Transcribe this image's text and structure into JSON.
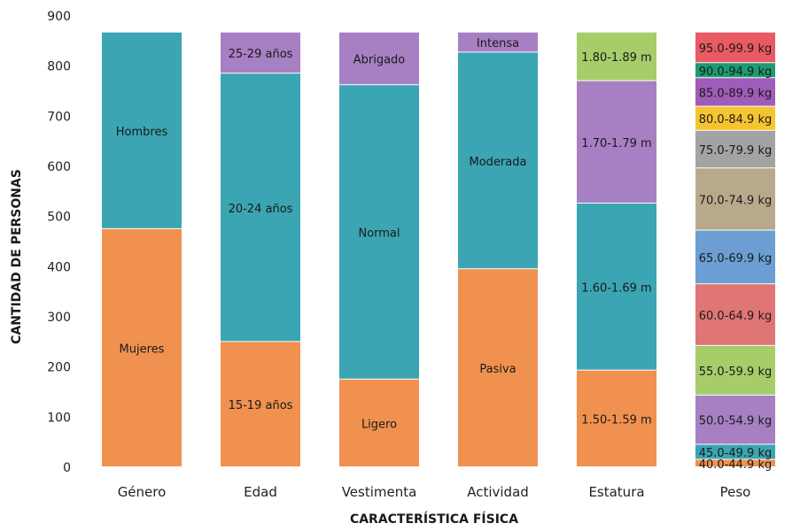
{
  "chart_data": {
    "type": "bar",
    "stacked": true,
    "title": "",
    "xlabel": "CARACTERÍSTICA FÍSICA",
    "ylabel": "CANTIDAD DE PERSONAS",
    "ylim": [
      0,
      900
    ],
    "yticks": [
      0,
      100,
      200,
      300,
      400,
      500,
      600,
      700,
      800,
      900
    ],
    "grid": false,
    "legend": "none",
    "categories": [
      "Género",
      "Edad",
      "Vestimenta",
      "Actividad",
      "Estatura",
      "Peso"
    ],
    "stacks": [
      {
        "category": "Género",
        "segments": [
          {
            "label": "Mujeres",
            "value": 475,
            "color": "#f0914f"
          },
          {
            "label": "Hombres",
            "value": 392,
            "color": "#3ba5b3"
          }
        ]
      },
      {
        "category": "Edad",
        "segments": [
          {
            "label": "15-19 años",
            "value": 250,
            "color": "#f0914f"
          },
          {
            "label": "20-24 años",
            "value": 535,
            "color": "#3ba5b3"
          },
          {
            "label": "25-29 años",
            "value": 82,
            "color": "#a77fc3"
          }
        ]
      },
      {
        "category": "Vestimenta",
        "segments": [
          {
            "label": "Ligero",
            "value": 175,
            "color": "#f0914f"
          },
          {
            "label": "Normal",
            "value": 587,
            "color": "#3ba5b3"
          },
          {
            "label": "Abrigado",
            "value": 105,
            "color": "#a77fc3"
          }
        ]
      },
      {
        "category": "Actividad",
        "segments": [
          {
            "label": "Pasiva",
            "value": 395,
            "color": "#f0914f"
          },
          {
            "label": "Moderada",
            "value": 432,
            "color": "#3ba5b3"
          },
          {
            "label": "Intensa",
            "value": 40,
            "color": "#a77fc3"
          }
        ]
      },
      {
        "category": "Estatura",
        "segments": [
          {
            "label": "1.50-1.59 m",
            "value": 193,
            "color": "#f0914f"
          },
          {
            "label": "1.60-1.69 m",
            "value": 333,
            "color": "#3ba5b3"
          },
          {
            "label": "1.70-1.79 m",
            "value": 244,
            "color": "#a77fc3"
          },
          {
            "label": "1.80-1.89 m",
            "value": 97,
            "color": "#a6cd6a"
          }
        ]
      },
      {
        "category": "Peso",
        "segments": [
          {
            "label": "40.0-44.9 kg",
            "value": 15,
            "color": "#f0914f"
          },
          {
            "label": "45.0-49.9 kg",
            "value": 30,
            "color": "#3ba5b3"
          },
          {
            "label": "50.0-54.9 kg",
            "value": 98,
            "color": "#a77fc3"
          },
          {
            "label": "55.0-59.9 kg",
            "value": 99,
            "color": "#a6cd6a"
          },
          {
            "label": "60.0-64.9 kg",
            "value": 123,
            "color": "#e07575"
          },
          {
            "label": "65.0-69.9 kg",
            "value": 107,
            "color": "#6c9ed3"
          },
          {
            "label": "70.0-74.9 kg",
            "value": 124,
            "color": "#b9a98c"
          },
          {
            "label": "75.0-79.9 kg",
            "value": 75,
            "color": "#a3a3a3"
          },
          {
            "label": "80.0-84.9 kg",
            "value": 48,
            "color": "#f5c531"
          },
          {
            "label": "85.0-89.9 kg",
            "value": 57,
            "color": "#9f5cb8"
          },
          {
            "label": "90.0-94.9 kg",
            "value": 30,
            "color": "#1d9b72"
          },
          {
            "label": "95.0-99.9 kg",
            "value": 61,
            "color": "#ea5a62"
          }
        ]
      }
    ]
  }
}
